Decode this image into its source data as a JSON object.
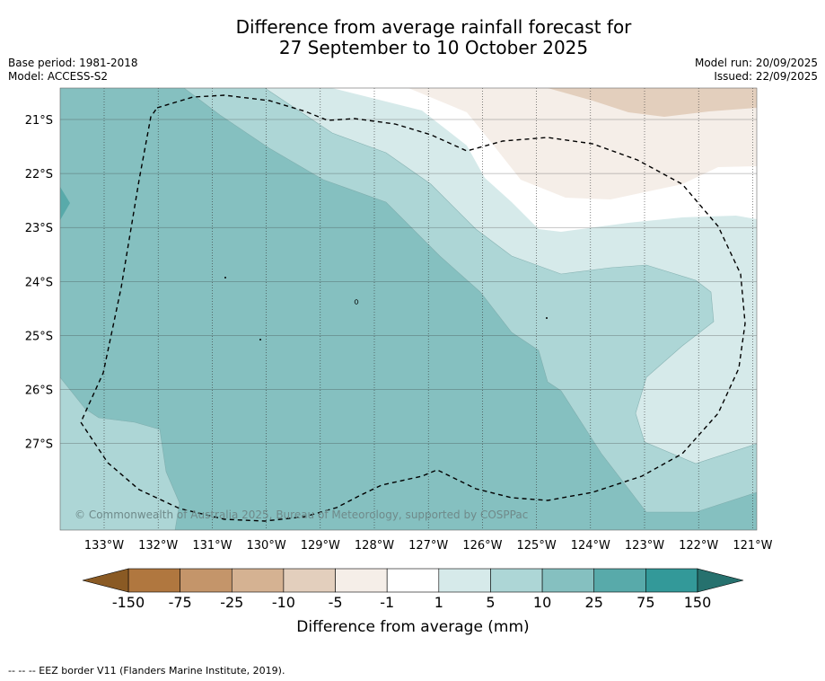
{
  "title_line1": "Difference from average rainfall forecast for",
  "title_line2": "27 September to 10 October 2025",
  "base_period": "Base period: 1981-2018",
  "model": "Model: ACCESS-S2",
  "model_run": "Model run: 20/09/2025",
  "issued": "Issued: 22/09/2025",
  "copyright": "© Commonwealth of Australia 2025, Bureau of Meteorology, supported by COSPPac",
  "lon_labels": [
    "133°W",
    "132°W",
    "131°W",
    "130°W",
    "129°W",
    "128°W",
    "127°W",
    "126°W",
    "125°W",
    "124°W",
    "123°W",
    "122°W",
    "121°W"
  ],
  "lat_labels": [
    "21°S",
    "22°S",
    "23°S",
    "24°S",
    "25°S",
    "26°S",
    "27°S"
  ],
  "colorbar": {
    "title": "Difference from average (mm)",
    "ticks": [
      "-150",
      "-75",
      "-25",
      "-10",
      "-5",
      "-1",
      "1",
      "5",
      "10",
      "25",
      "75",
      "150"
    ],
    "low_color": "#8a5a24",
    "high_color": "#26716e",
    "colors": [
      "#b0773f",
      "#c4956a",
      "#d5b292",
      "#e3cfbd",
      "#f5eee8",
      "#ffffff",
      "#d6eaea",
      "#add6d6",
      "#85c0c0",
      "#58aaaa",
      "#339999"
    ]
  },
  "footnote": "--  --  -- EEZ border V11 (Flanders Marine Institute, 2019)."
}
